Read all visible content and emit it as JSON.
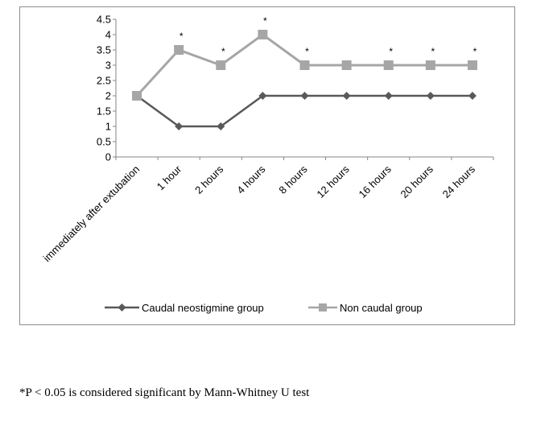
{
  "chart_data": {
    "type": "line",
    "categories": [
      "immediately after extubation",
      "1 hour",
      "2 hours",
      "4 hours",
      "8 hours",
      "12 hours",
      "16 hours",
      "20 hours",
      "24 hours"
    ],
    "series": [
      {
        "name": "Caudal neostigmine group",
        "values": [
          2,
          1,
          1,
          2,
          2,
          2,
          2,
          2,
          2
        ],
        "color": "#595959",
        "marker": "diamond"
      },
      {
        "name": "Non caudal group",
        "values": [
          2,
          3.5,
          3,
          4,
          3,
          3,
          3,
          3,
          3
        ],
        "color": "#a6a6a6",
        "marker": "square"
      }
    ],
    "significance_marker": "*",
    "significant_indices": [
      1,
      2,
      3,
      4,
      6,
      7,
      8
    ],
    "ylim": [
      0,
      4.5
    ],
    "yticks": [
      "0",
      "0.5",
      "1",
      "1.5",
      "2",
      "2.5",
      "3",
      "3.5",
      "4",
      "4.5"
    ],
    "grid": false,
    "legend_position": "bottom"
  },
  "footnote": "*P < 0.05 is considered significant by Mann-Whitney U test"
}
